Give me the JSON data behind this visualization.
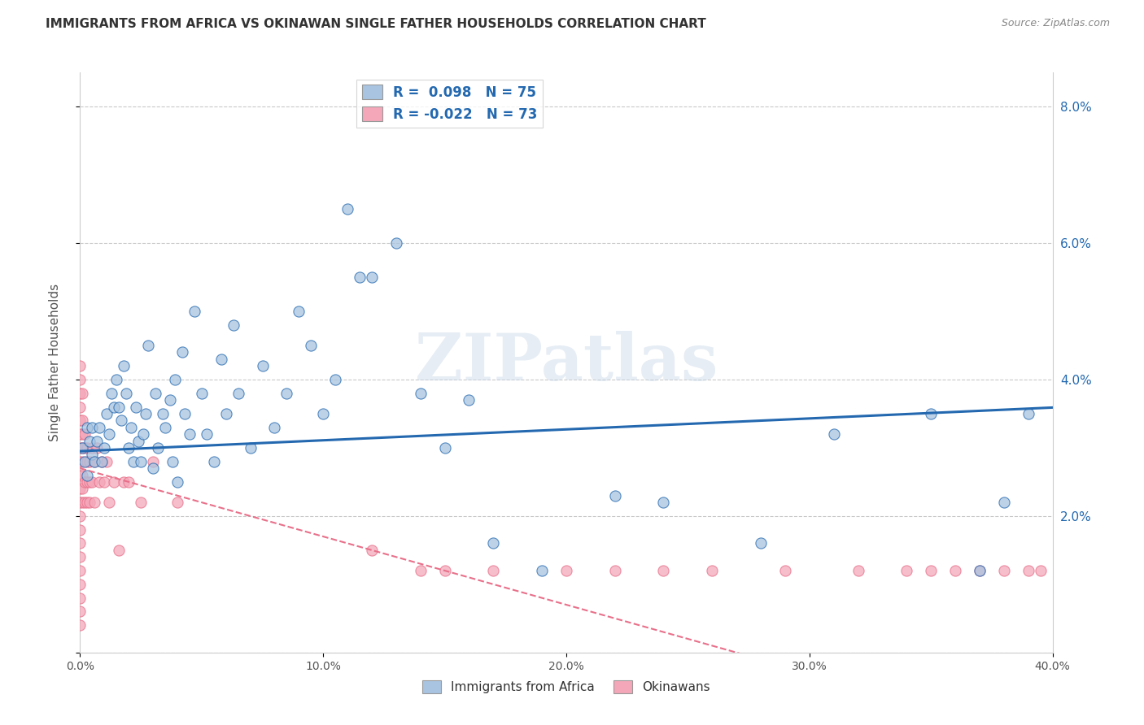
{
  "title": "IMMIGRANTS FROM AFRICA VS OKINAWAN SINGLE FATHER HOUSEHOLDS CORRELATION CHART",
  "source": "Source: ZipAtlas.com",
  "ylabel_label": "Single Father Households",
  "xlim": [
    0.0,
    0.4
  ],
  "ylim": [
    0.0,
    0.085
  ],
  "xticks": [
    0.0,
    0.1,
    0.2,
    0.3,
    0.4
  ],
  "yticks": [
    0.0,
    0.02,
    0.04,
    0.06,
    0.08
  ],
  "ytick_labels_right": [
    "",
    "2.0%",
    "4.0%",
    "6.0%",
    "8.0%"
  ],
  "xtick_labels": [
    "0.0%",
    "10.0%",
    "20.0%",
    "30.0%",
    "40.0%"
  ],
  "grid_yticks": [
    0.0,
    0.02,
    0.04,
    0.06,
    0.08
  ],
  "legend_label1": "Immigrants from Africa",
  "legend_label2": "Okinawans",
  "series1_R": "0.098",
  "series1_N": "75",
  "series2_R": "-0.022",
  "series2_N": "73",
  "color_blue": "#a8c4e0",
  "color_blue_line": "#2469b0",
  "color_pink": "#f4a7b9",
  "color_pink_line": "#e8708a",
  "watermark": "ZIPatlas",
  "background_color": "#ffffff",
  "grid_color": "#bbbbbb",
  "series1_x": [
    0.001,
    0.002,
    0.003,
    0.003,
    0.004,
    0.005,
    0.005,
    0.006,
    0.007,
    0.008,
    0.009,
    0.01,
    0.011,
    0.012,
    0.013,
    0.014,
    0.015,
    0.016,
    0.017,
    0.018,
    0.019,
    0.02,
    0.021,
    0.022,
    0.023,
    0.024,
    0.025,
    0.026,
    0.027,
    0.028,
    0.03,
    0.031,
    0.032,
    0.034,
    0.035,
    0.037,
    0.038,
    0.039,
    0.04,
    0.042,
    0.043,
    0.045,
    0.047,
    0.05,
    0.052,
    0.055,
    0.058,
    0.06,
    0.063,
    0.065,
    0.07,
    0.075,
    0.08,
    0.085,
    0.09,
    0.095,
    0.1,
    0.105,
    0.11,
    0.115,
    0.12,
    0.13,
    0.14,
    0.15,
    0.16,
    0.17,
    0.19,
    0.22,
    0.24,
    0.28,
    0.31,
    0.35,
    0.37,
    0.38,
    0.39
  ],
  "series1_y": [
    0.03,
    0.028,
    0.033,
    0.026,
    0.031,
    0.029,
    0.033,
    0.028,
    0.031,
    0.033,
    0.028,
    0.03,
    0.035,
    0.032,
    0.038,
    0.036,
    0.04,
    0.036,
    0.034,
    0.042,
    0.038,
    0.03,
    0.033,
    0.028,
    0.036,
    0.031,
    0.028,
    0.032,
    0.035,
    0.045,
    0.027,
    0.038,
    0.03,
    0.035,
    0.033,
    0.037,
    0.028,
    0.04,
    0.025,
    0.044,
    0.035,
    0.032,
    0.05,
    0.038,
    0.032,
    0.028,
    0.043,
    0.035,
    0.048,
    0.038,
    0.03,
    0.042,
    0.033,
    0.038,
    0.05,
    0.045,
    0.035,
    0.04,
    0.065,
    0.055,
    0.055,
    0.06,
    0.038,
    0.03,
    0.037,
    0.016,
    0.012,
    0.023,
    0.022,
    0.016,
    0.032,
    0.035,
    0.012,
    0.022,
    0.035
  ],
  "series2_x": [
    0.0,
    0.0,
    0.0,
    0.0,
    0.0,
    0.0,
    0.0,
    0.0,
    0.0,
    0.0,
    0.0,
    0.0,
    0.0,
    0.0,
    0.0,
    0.0,
    0.0,
    0.0,
    0.0,
    0.0,
    0.001,
    0.001,
    0.001,
    0.001,
    0.001,
    0.001,
    0.001,
    0.001,
    0.002,
    0.002,
    0.002,
    0.002,
    0.003,
    0.003,
    0.003,
    0.003,
    0.004,
    0.004,
    0.004,
    0.005,
    0.005,
    0.006,
    0.006,
    0.007,
    0.008,
    0.009,
    0.01,
    0.011,
    0.012,
    0.014,
    0.016,
    0.018,
    0.02,
    0.025,
    0.03,
    0.04,
    0.12,
    0.14,
    0.15,
    0.17,
    0.2,
    0.22,
    0.24,
    0.26,
    0.29,
    0.32,
    0.34,
    0.35,
    0.36,
    0.37,
    0.38,
    0.39,
    0.395
  ],
  "series2_y": [
    0.01,
    0.012,
    0.014,
    0.016,
    0.018,
    0.02,
    0.022,
    0.024,
    0.026,
    0.028,
    0.03,
    0.032,
    0.034,
    0.036,
    0.038,
    0.04,
    0.042,
    0.008,
    0.006,
    0.004,
    0.028,
    0.03,
    0.032,
    0.034,
    0.022,
    0.024,
    0.026,
    0.038,
    0.03,
    0.032,
    0.025,
    0.022,
    0.03,
    0.025,
    0.022,
    0.028,
    0.028,
    0.025,
    0.022,
    0.03,
    0.025,
    0.028,
    0.022,
    0.03,
    0.025,
    0.028,
    0.025,
    0.028,
    0.022,
    0.025,
    0.015,
    0.025,
    0.025,
    0.022,
    0.028,
    0.022,
    0.015,
    0.012,
    0.012,
    0.012,
    0.012,
    0.012,
    0.012,
    0.012,
    0.012,
    0.012,
    0.012,
    0.012,
    0.012,
    0.012,
    0.012,
    0.012,
    0.012
  ]
}
